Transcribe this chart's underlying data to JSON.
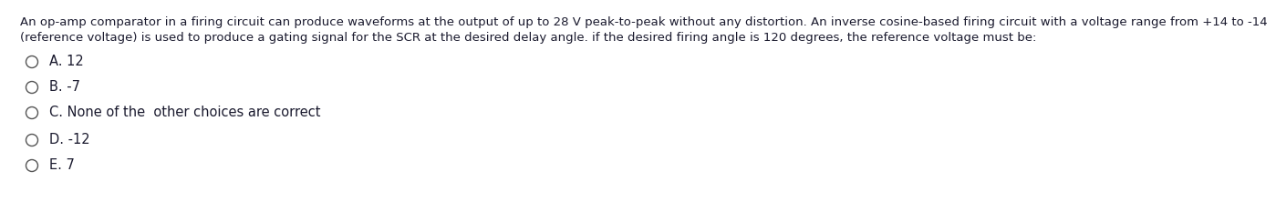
{
  "background_color": "#ffffff",
  "question_text_line1": "An op-amp comparator in a firing circuit can produce waveforms at the output of up to 28 V peak-to-peak without any distortion. An inverse cosine-based firing circuit with a voltage range from +14 to -14",
  "question_text_line2": "(reference voltage) is used to produce a gating signal for the SCR at the desired delay angle. if the desired firing angle is 120 degrees, the reference voltage must be:",
  "options": [
    "A. 12",
    "B. -7",
    "C. None of the  other choices are correct",
    "D. -12",
    "E. 7"
  ],
  "text_color": "#1a1a2e",
  "font_size_question": 9.5,
  "font_size_options": 10.5,
  "circle_linewidth": 1.0,
  "circle_color": "#555555"
}
